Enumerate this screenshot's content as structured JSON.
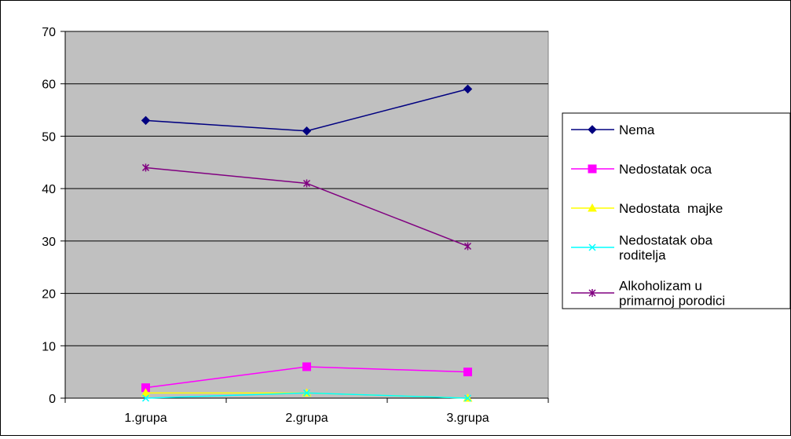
{
  "chart_data": {
    "type": "line",
    "title": "",
    "xlabel": "",
    "ylabel": "",
    "categories": [
      "1.grupa",
      "2.grupa",
      "3.grupa"
    ],
    "ylim": [
      0,
      70
    ],
    "yticks": [
      0,
      10,
      20,
      30,
      40,
      50,
      60,
      70
    ],
    "grid": true,
    "plot_background": "#c0c0c0",
    "legend_position": "right",
    "series": [
      {
        "name": "Nema",
        "values": [
          53,
          51,
          59
        ],
        "color": "#000080",
        "marker": "diamond"
      },
      {
        "name": "Nedostatak oca",
        "values": [
          2,
          6,
          5
        ],
        "color": "#ff00ff",
        "marker": "square"
      },
      {
        "name": "Nedostata  majke",
        "values": [
          1,
          1,
          0
        ],
        "color": "#ffff00",
        "marker": "triangle"
      },
      {
        "name": "Nedostatak oba roditelja",
        "values": [
          0,
          1,
          0
        ],
        "color": "#00ffff",
        "marker": "x"
      },
      {
        "name": "Alkoholizam u primarnoj porodici",
        "values": [
          44,
          41,
          29
        ],
        "color": "#800080",
        "marker": "star"
      }
    ]
  }
}
